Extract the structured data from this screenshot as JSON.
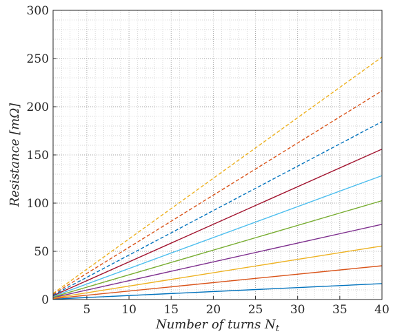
{
  "chart_data": {
    "type": "line",
    "xlabel": "Number of turns N",
    "xlabel_sub": "t",
    "ylabel": "Resistance [mΩ]",
    "xlim": [
      1,
      40
    ],
    "ylim": [
      0,
      300
    ],
    "xticks": [
      5,
      10,
      15,
      20,
      25,
      30,
      35,
      40
    ],
    "yticks": [
      0,
      50,
      100,
      150,
      200,
      250,
      300
    ],
    "grid": "major and minor, dotted",
    "legend": "none",
    "series": [
      {
        "color": "#0072BD",
        "style": "solid",
        "x": [
          1,
          40
        ],
        "y": [
          0.4,
          16.5
        ]
      },
      {
        "color": "#D95319",
        "style": "solid",
        "x": [
          1,
          40
        ],
        "y": [
          0.9,
          35.0
        ]
      },
      {
        "color": "#EDB120",
        "style": "solid",
        "x": [
          1,
          40
        ],
        "y": [
          1.4,
          55.5
        ]
      },
      {
        "color": "#7E2F8E",
        "style": "solid",
        "x": [
          1,
          40
        ],
        "y": [
          2.0,
          78.0
        ]
      },
      {
        "color": "#77AC30",
        "style": "solid",
        "x": [
          1,
          40
        ],
        "y": [
          2.6,
          102.5
        ]
      },
      {
        "color": "#4DBEEE",
        "style": "solid",
        "x": [
          1,
          40
        ],
        "y": [
          3.2,
          128.5
        ]
      },
      {
        "color": "#A2142F",
        "style": "solid",
        "x": [
          1,
          40
        ],
        "y": [
          3.9,
          156.0
        ]
      },
      {
        "color": "#0072BD",
        "style": "dashed",
        "x": [
          1,
          40
        ],
        "y": [
          4.6,
          184.5
        ]
      },
      {
        "color": "#D95319",
        "style": "dashed",
        "x": [
          1,
          40
        ],
        "y": [
          5.4,
          216.5
        ]
      },
      {
        "color": "#EDB120",
        "style": "dashed",
        "x": [
          1,
          40
        ],
        "y": [
          6.3,
          251.5
        ]
      }
    ]
  }
}
